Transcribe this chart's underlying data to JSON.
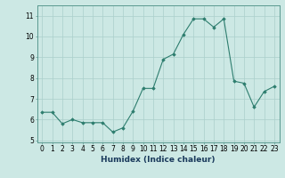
{
  "x": [
    0,
    1,
    2,
    3,
    4,
    5,
    6,
    7,
    8,
    9,
    10,
    11,
    12,
    13,
    14,
    15,
    16,
    17,
    18,
    19,
    20,
    21,
    22,
    23
  ],
  "y": [
    6.35,
    6.35,
    5.8,
    6.0,
    5.85,
    5.85,
    5.85,
    5.4,
    5.6,
    6.4,
    7.5,
    7.5,
    8.9,
    9.15,
    10.1,
    10.85,
    10.85,
    10.45,
    10.85,
    7.85,
    7.75,
    6.6,
    7.35,
    7.6
  ],
  "line_color": "#2d7d6e",
  "marker": "D",
  "marker_size": 1.8,
  "bg_color": "#cce8e4",
  "grid_color": "#aacfcb",
  "xlabel": "Humidex (Indice chaleur)",
  "ylim": [
    4.9,
    11.5
  ],
  "xlim": [
    -0.5,
    23.5
  ],
  "yticks": [
    5,
    6,
    7,
    8,
    9,
    10,
    11
  ],
  "xticks": [
    0,
    1,
    2,
    3,
    4,
    5,
    6,
    7,
    8,
    9,
    10,
    11,
    12,
    13,
    14,
    15,
    16,
    17,
    18,
    19,
    20,
    21,
    22,
    23
  ],
  "tick_fontsize": 5.5,
  "xlabel_fontsize": 6.5
}
